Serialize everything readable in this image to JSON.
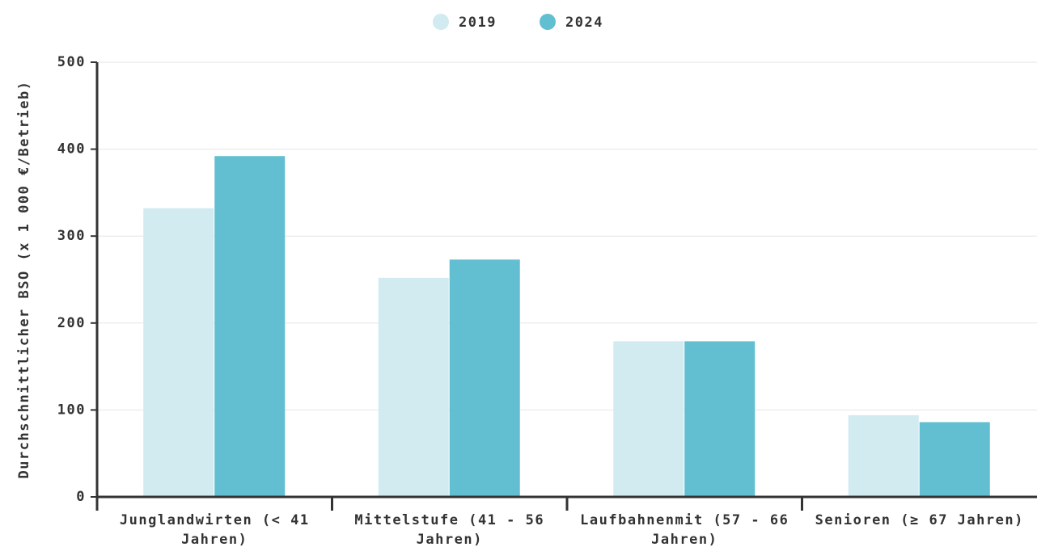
{
  "chart_data": {
    "type": "bar",
    "categories": [
      "Junglandwirten (< 41 Jahren)",
      "Mittelstufe (41 - 56 Jahren)",
      "Laufbahnenmit (57 - 66 Jahren)",
      "Senioren (≥ 67 Jahren)"
    ],
    "series": [
      {
        "name": "2019",
        "color": "#d1ebf1",
        "values": [
          332,
          252,
          179,
          94
        ]
      },
      {
        "name": "2024",
        "color": "#62bfd1",
        "values": [
          392,
          273,
          179,
          86
        ]
      }
    ],
    "y_label": "Durchschnittlicher BSO (x 1 000 €/Betrieb)",
    "ylim": [
      0,
      500
    ],
    "yticks": [
      0,
      100,
      200,
      300,
      400,
      500
    ],
    "grid": true,
    "legend": "top"
  }
}
